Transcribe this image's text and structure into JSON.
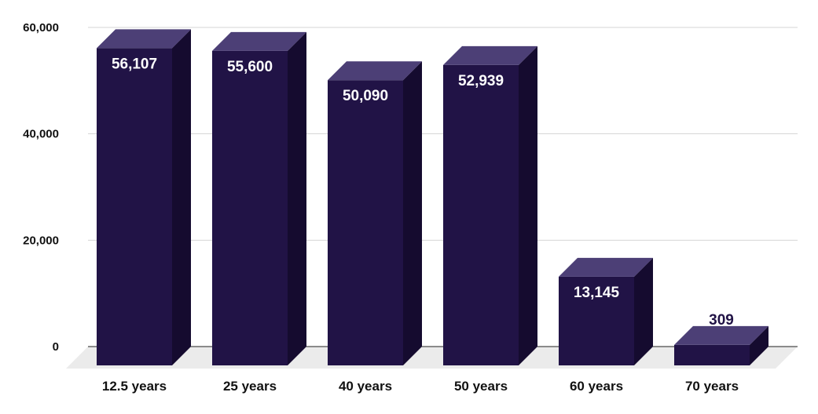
{
  "chart_data": {
    "type": "bar",
    "style": "3d",
    "categories": [
      "12.5 years",
      "25 years",
      "40 years",
      "50 years",
      "60 years",
      "70 years"
    ],
    "values": [
      56107,
      55600,
      50090,
      52939,
      13145,
      309
    ],
    "value_labels": [
      "56,107",
      "55,600",
      "50,090",
      "52,939",
      "13,145",
      "309"
    ],
    "y_ticks": [
      0,
      20000,
      40000,
      60000
    ],
    "y_tick_labels": [
      "0",
      "20,000",
      "40,000",
      "60,000"
    ],
    "ylim": [
      0,
      60000
    ],
    "grid": true,
    "legend": "none",
    "title": "",
    "xlabel": "",
    "ylabel": "",
    "colors": {
      "bar_front": "#211346",
      "bar_side": "#150b2f",
      "bar_top": "#4c3f76",
      "floor": "#ebebeb",
      "grid": "#d4d4d4",
      "axis": "#222222",
      "label_inside": "#ffffff",
      "label_outside": "#211346"
    }
  }
}
